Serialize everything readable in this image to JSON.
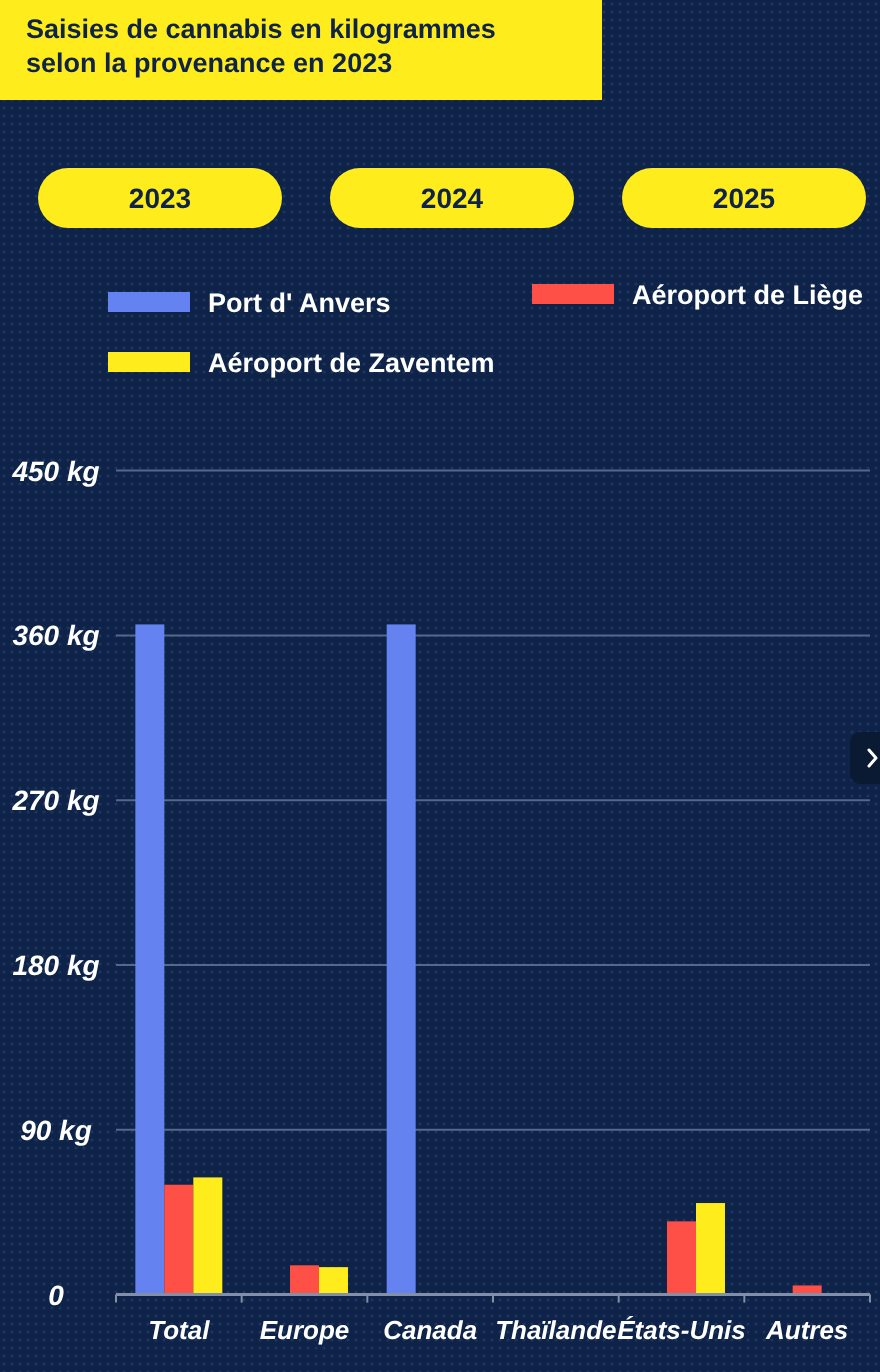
{
  "chart_data": {
    "type": "bar",
    "title": "Saisies de cannabis en kilogrammes\nselon la provenance en 2023",
    "annotations": [
      "2023",
      "2024",
      "2025"
    ],
    "categories": [
      "Total",
      "Europe",
      "Canada",
      "Thaïlande",
      "États-Unis",
      "Autres"
    ],
    "series": [
      {
        "name": "Port d' Anvers",
        "color": "#6482f0",
        "values": [
          366,
          null,
          366,
          null,
          null,
          null
        ]
      },
      {
        "name": "Aéroport de Liège",
        "color": "#ff5048",
        "values": [
          60,
          16,
          null,
          null,
          40,
          5
        ]
      },
      {
        "name": "Aéroport de Zaventem",
        "color": "#ffec1c",
        "values": [
          64,
          15,
          null,
          null,
          50,
          null
        ]
      }
    ],
    "ylim": [
      0,
      450
    ],
    "yticks": [
      0,
      {
        "value": 90,
        "label": "90 kg"
      },
      {
        "value": 180,
        "label": "180 kg"
      },
      {
        "value": 270,
        "label": "270 kg"
      },
      {
        "value": 360,
        "label": "360 kg"
      },
      {
        "value": 450,
        "label": "450 kg"
      }
    ],
    "grid": "y",
    "legend": "top"
  }
}
